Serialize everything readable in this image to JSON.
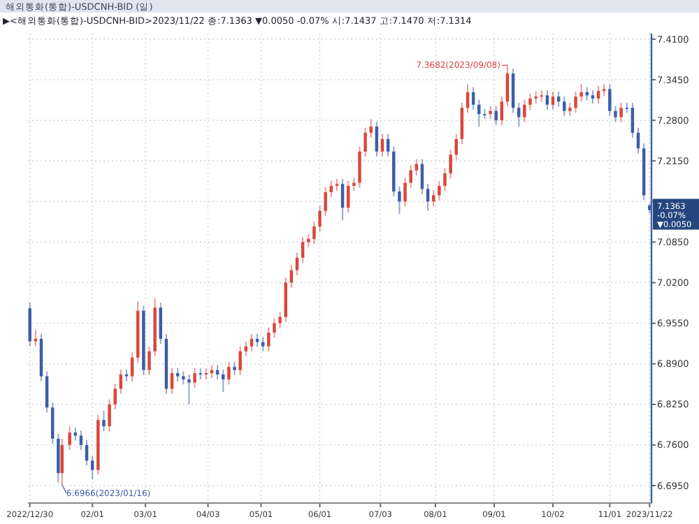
{
  "chart_data": {
    "type": "candlestick",
    "title": "해외통화(통합)-USDCNH-BID (일)",
    "subtitle": "▶<해외통화(통합)-USDCNH-BID>2023/11/22 종:7.1363 ▼0.0050 -0.07% 시:7.1437 고:7.1470 저:7.1314",
    "annotations": [
      {
        "text": "7.3682(2023/09/08)",
        "x": "2023-09-08",
        "y": 7.3682
      },
      {
        "text": "6.6966(2023/01/16)",
        "x": "2023-01-16",
        "y": 6.6966
      },
      {
        "text": "7.1363 -0.07% ▼0.0050",
        "x": "2023-11-22",
        "y": 7.1363
      }
    ],
    "x": [
      "2022-12-30",
      "2023-01-02",
      "2023-01-05",
      "2023-01-08",
      "2023-01-11",
      "2023-01-14",
      "2023-01-16",
      "2023-01-20",
      "2023-01-23",
      "2023-01-26",
      "2023-01-29",
      "2023-02-01",
      "2023-02-04",
      "2023-02-07",
      "2023-02-10",
      "2023-02-13",
      "2023-02-16",
      "2023-02-19",
      "2023-02-22",
      "2023-02-25",
      "2023-02-28",
      "2023-03-03",
      "2023-03-06",
      "2023-03-09",
      "2023-03-12",
      "2023-03-15",
      "2023-03-18",
      "2023-03-21",
      "2023-03-24",
      "2023-03-27",
      "2023-03-30",
      "2023-04-02",
      "2023-04-05",
      "2023-04-08",
      "2023-04-11",
      "2023-04-14",
      "2023-04-17",
      "2023-04-20",
      "2023-04-23",
      "2023-04-26",
      "2023-04-29",
      "2023-05-02",
      "2023-05-05",
      "2023-05-08",
      "2023-05-11",
      "2023-05-14",
      "2023-05-17",
      "2023-05-20",
      "2023-05-23",
      "2023-05-26",
      "2023-05-29",
      "2023-06-01",
      "2023-06-04",
      "2023-06-07",
      "2023-06-10",
      "2023-06-13",
      "2023-06-16",
      "2023-06-19",
      "2023-06-22",
      "2023-06-25",
      "2023-06-28",
      "2023-07-01",
      "2023-07-04",
      "2023-07-07",
      "2023-07-10",
      "2023-07-13",
      "2023-07-16",
      "2023-07-19",
      "2023-07-22",
      "2023-07-25",
      "2023-07-28",
      "2023-07-31",
      "2023-08-03",
      "2023-08-06",
      "2023-08-09",
      "2023-08-12",
      "2023-08-15",
      "2023-08-18",
      "2023-08-21",
      "2023-08-24",
      "2023-08-27",
      "2023-08-30",
      "2023-09-02",
      "2023-09-05",
      "2023-09-08",
      "2023-09-11",
      "2023-09-14",
      "2023-09-17",
      "2023-09-20",
      "2023-09-23",
      "2023-09-26",
      "2023-09-29",
      "2023-10-02",
      "2023-10-05",
      "2023-10-08",
      "2023-10-11",
      "2023-10-14",
      "2023-10-17",
      "2023-10-20",
      "2023-10-23",
      "2023-10-26",
      "2023-10-29",
      "2023-11-01",
      "2023-11-04",
      "2023-11-07",
      "2023-11-10",
      "2023-11-13",
      "2023-11-16",
      "2023-11-19",
      "2023-11-22"
    ],
    "ohlc": [
      [
        6.979,
        6.988,
        6.918,
        6.926
      ],
      [
        6.926,
        6.945,
        6.918,
        6.93
      ],
      [
        6.93,
        6.938,
        6.862,
        6.87
      ],
      [
        6.87,
        6.878,
        6.812,
        6.82
      ],
      [
        6.82,
        6.828,
        6.762,
        6.77
      ],
      [
        6.77,
        6.778,
        6.7,
        6.715
      ],
      [
        6.715,
        6.77,
        6.6966,
        6.76
      ],
      [
        6.76,
        6.79,
        6.752,
        6.78
      ],
      [
        6.78,
        6.788,
        6.767,
        6.775
      ],
      [
        6.775,
        6.783,
        6.752,
        6.76
      ],
      [
        6.76,
        6.768,
        6.727,
        6.735
      ],
      [
        6.735,
        6.743,
        6.705,
        6.72
      ],
      [
        6.72,
        6.808,
        6.712,
        6.8
      ],
      [
        6.8,
        6.815,
        6.782,
        6.79
      ],
      [
        6.79,
        6.833,
        6.782,
        6.825
      ],
      [
        6.825,
        6.858,
        6.817,
        6.85
      ],
      [
        6.85,
        6.881,
        6.842,
        6.873
      ],
      [
        6.873,
        6.881,
        6.862,
        6.87
      ],
      [
        6.87,
        6.908,
        6.862,
        6.9
      ],
      [
        6.9,
        6.99,
        6.892,
        6.975
      ],
      [
        6.975,
        6.983,
        6.872,
        6.88
      ],
      [
        6.88,
        6.918,
        6.872,
        6.91
      ],
      [
        6.91,
        6.995,
        6.902,
        6.98
      ],
      [
        6.98,
        6.988,
        6.922,
        6.93
      ],
      [
        6.93,
        6.938,
        6.842,
        6.85
      ],
      [
        6.85,
        6.883,
        6.842,
        6.875
      ],
      [
        6.875,
        6.883,
        6.862,
        6.87
      ],
      [
        6.87,
        6.878,
        6.857,
        6.865
      ],
      [
        6.865,
        6.873,
        6.825,
        6.86
      ],
      [
        6.86,
        6.883,
        6.852,
        6.875
      ],
      [
        6.875,
        6.883,
        6.865,
        6.873
      ],
      [
        6.873,
        6.883,
        6.865,
        6.875
      ],
      [
        6.875,
        6.888,
        6.867,
        6.88
      ],
      [
        6.88,
        6.888,
        6.865,
        6.873
      ],
      [
        6.873,
        6.881,
        6.845,
        6.865
      ],
      [
        6.865,
        6.893,
        6.857,
        6.885
      ],
      [
        6.885,
        6.893,
        6.872,
        6.88
      ],
      [
        6.88,
        6.918,
        6.872,
        6.91
      ],
      [
        6.91,
        6.926,
        6.902,
        6.918
      ],
      [
        6.918,
        6.938,
        6.91,
        6.93
      ],
      [
        6.93,
        6.938,
        6.917,
        6.925
      ],
      [
        6.925,
        6.933,
        6.91,
        6.918
      ],
      [
        6.918,
        6.948,
        6.91,
        6.94
      ],
      [
        6.94,
        6.963,
        6.932,
        6.955
      ],
      [
        6.955,
        6.973,
        6.947,
        6.965
      ],
      [
        6.965,
        7.028,
        6.957,
        7.02
      ],
      [
        7.02,
        7.048,
        7.012,
        7.04
      ],
      [
        7.04,
        7.068,
        7.032,
        7.06
      ],
      [
        7.06,
        7.093,
        7.052,
        7.085
      ],
      [
        7.085,
        7.098,
        7.077,
        7.09
      ],
      [
        7.09,
        7.118,
        7.082,
        7.11
      ],
      [
        7.11,
        7.143,
        7.102,
        7.135
      ],
      [
        7.135,
        7.173,
        7.127,
        7.165
      ],
      [
        7.165,
        7.183,
        7.157,
        7.175
      ],
      [
        7.175,
        7.186,
        7.167,
        7.178
      ],
      [
        7.178,
        7.186,
        7.12,
        7.14
      ],
      [
        7.14,
        7.183,
        7.132,
        7.175
      ],
      [
        7.175,
        7.188,
        7.167,
        7.18
      ],
      [
        7.18,
        7.238,
        7.172,
        7.23
      ],
      [
        7.23,
        7.268,
        7.222,
        7.26
      ],
      [
        7.26,
        7.282,
        7.252,
        7.27
      ],
      [
        7.27,
        7.278,
        7.222,
        7.23
      ],
      [
        7.23,
        7.258,
        7.222,
        7.25
      ],
      [
        7.25,
        7.258,
        7.222,
        7.23
      ],
      [
        7.23,
        7.238,
        7.158,
        7.166
      ],
      [
        7.166,
        7.174,
        7.13,
        7.15
      ],
      [
        7.15,
        7.188,
        7.142,
        7.18
      ],
      [
        7.18,
        7.208,
        7.172,
        7.2
      ],
      [
        7.2,
        7.218,
        7.192,
        7.21
      ],
      [
        7.21,
        7.218,
        7.162,
        7.17
      ],
      [
        7.17,
        7.178,
        7.135,
        7.15
      ],
      [
        7.15,
        7.168,
        7.142,
        7.16
      ],
      [
        7.16,
        7.183,
        7.152,
        7.175
      ],
      [
        7.175,
        7.203,
        7.167,
        7.195
      ],
      [
        7.195,
        7.233,
        7.187,
        7.225
      ],
      [
        7.225,
        7.258,
        7.217,
        7.25
      ],
      [
        7.25,
        7.308,
        7.242,
        7.3
      ],
      [
        7.3,
        7.338,
        7.292,
        7.325
      ],
      [
        7.325,
        7.333,
        7.297,
        7.305
      ],
      [
        7.305,
        7.313,
        7.27,
        7.29
      ],
      [
        7.29,
        7.298,
        7.282,
        7.29
      ],
      [
        7.29,
        7.303,
        7.282,
        7.295
      ],
      [
        7.295,
        7.303,
        7.272,
        7.28
      ],
      [
        7.28,
        7.318,
        7.272,
        7.31
      ],
      [
        7.31,
        7.3682,
        7.302,
        7.355
      ],
      [
        7.355,
        7.363,
        7.292,
        7.3
      ],
      [
        7.3,
        7.308,
        7.27,
        7.285
      ],
      [
        7.285,
        7.313,
        7.277,
        7.305
      ],
      [
        7.305,
        7.323,
        7.297,
        7.315
      ],
      [
        7.315,
        7.326,
        7.307,
        7.318
      ],
      [
        7.318,
        7.328,
        7.31,
        7.32
      ],
      [
        7.32,
        7.328,
        7.297,
        7.305
      ],
      [
        7.305,
        7.326,
        7.297,
        7.318
      ],
      [
        7.318,
        7.326,
        7.302,
        7.31
      ],
      [
        7.31,
        7.318,
        7.287,
        7.295
      ],
      [
        7.295,
        7.308,
        7.287,
        7.3
      ],
      [
        7.3,
        7.326,
        7.292,
        7.318
      ],
      [
        7.318,
        7.338,
        7.31,
        7.325
      ],
      [
        7.325,
        7.333,
        7.312,
        7.32
      ],
      [
        7.32,
        7.328,
        7.307,
        7.315
      ],
      [
        7.315,
        7.335,
        7.307,
        7.327
      ],
      [
        7.327,
        7.338,
        7.319,
        7.33
      ],
      [
        7.33,
        7.338,
        7.287,
        7.295
      ],
      [
        7.295,
        7.303,
        7.277,
        7.285
      ],
      [
        7.285,
        7.308,
        7.277,
        7.3
      ],
      [
        7.3,
        7.308,
        7.292,
        7.3
      ],
      [
        7.3,
        7.308,
        7.252,
        7.26
      ],
      [
        7.26,
        7.268,
        7.227,
        7.235
      ],
      [
        7.235,
        7.243,
        7.152,
        7.16
      ],
      [
        7.1437,
        7.147,
        7.1314,
        7.1363
      ]
    ],
    "colors": [
      "#3b5ea8",
      "#d9473b",
      "#3b5ea8",
      "#3b5ea8",
      "#3b5ea8",
      "#3b5ea8",
      "#d9473b",
      "#d9473b",
      "#3b5ea8",
      "#3b5ea8",
      "#3b5ea8",
      "#3b5ea8",
      "#d9473b",
      "#3b5ea8",
      "#d9473b",
      "#d9473b",
      "#d9473b",
      "#3b5ea8",
      "#d9473b",
      "#d9473b",
      "#3b5ea8",
      "#d9473b",
      "#d9473b",
      "#3b5ea8",
      "#3b5ea8",
      "#d9473b",
      "#3b5ea8",
      "#3b5ea8",
      "#3b5ea8",
      "#d9473b",
      "#3b5ea8",
      "#d9473b",
      "#d9473b",
      "#3b5ea8",
      "#3b5ea8",
      "#d9473b",
      "#3b5ea8",
      "#d9473b",
      "#d9473b",
      "#d9473b",
      "#3b5ea8",
      "#3b5ea8",
      "#d9473b",
      "#d9473b",
      "#d9473b",
      "#d9473b",
      "#d9473b",
      "#d9473b",
      "#d9473b",
      "#d9473b",
      "#d9473b",
      "#d9473b",
      "#d9473b",
      "#d9473b",
      "#d9473b",
      "#3b5ea8",
      "#d9473b",
      "#d9473b",
      "#d9473b",
      "#d9473b",
      "#d9473b",
      "#3b5ea8",
      "#d9473b",
      "#3b5ea8",
      "#3b5ea8",
      "#3b5ea8",
      "#d9473b",
      "#d9473b",
      "#d9473b",
      "#3b5ea8",
      "#3b5ea8",
      "#d9473b",
      "#d9473b",
      "#d9473b",
      "#d9473b",
      "#d9473b",
      "#d9473b",
      "#d9473b",
      "#3b5ea8",
      "#3b5ea8",
      "#3b5ea8",
      "#d9473b",
      "#3b5ea8",
      "#d9473b",
      "#d9473b",
      "#3b5ea8",
      "#3b5ea8",
      "#d9473b",
      "#d9473b",
      "#d9473b",
      "#d9473b",
      "#3b5ea8",
      "#d9473b",
      "#3b5ea8",
      "#3b5ea8",
      "#d9473b",
      "#d9473b",
      "#d9473b",
      "#3b5ea8",
      "#3b5ea8",
      "#d9473b",
      "#d9473b",
      "#3b5ea8",
      "#3b5ea8",
      "#d9473b",
      "#3b5ea8",
      "#3b5ea8",
      "#3b5ea8",
      "#3b5ea8",
      "#3b5ea8"
    ],
    "xlim": [
      "2022-12-29",
      "2023-11-23"
    ],
    "xticks": [
      {
        "value": "2022-12-30",
        "label": "2022/12/30"
      },
      {
        "value": "2023-02-01",
        "label": "02/01"
      },
      {
        "value": "2023-03-01",
        "label": "03/01"
      },
      {
        "value": "2023-04-03",
        "label": "04/03"
      },
      {
        "value": "2023-05-01",
        "label": "05/01"
      },
      {
        "value": "2023-06-01",
        "label": "06/01"
      },
      {
        "value": "2023-07-03",
        "label": "07/03"
      },
      {
        "value": "2023-08-01",
        "label": "08/01"
      },
      {
        "value": "2023-09-01",
        "label": "09/01"
      },
      {
        "value": "2023-10-02",
        "label": "10/02"
      },
      {
        "value": "2023-11-01",
        "label": "11/01"
      },
      {
        "value": "2023-11-22",
        "label": "2023/11/22"
      }
    ],
    "ylim": [
      6.667,
      7.419
    ],
    "yticks": [
      {
        "value": 6.695,
        "label": "6.6950"
      },
      {
        "value": 6.76,
        "label": "6.7600"
      },
      {
        "value": 6.825,
        "label": "6.8250"
      },
      {
        "value": 6.89,
        "label": "6.8900"
      },
      {
        "value": 6.955,
        "label": "6.9550"
      },
      {
        "value": 7.02,
        "label": "7.0200"
      },
      {
        "value": 7.085,
        "label": "7.0850"
      },
      {
        "value": 7.15,
        "label": null
      },
      {
        "value": 7.215,
        "label": "7.2150"
      },
      {
        "value": 7.28,
        "label": "7.2800"
      },
      {
        "value": 7.345,
        "label": "7.3450"
      },
      {
        "value": 7.41,
        "label": "7.4100"
      }
    ],
    "grid": true
  }
}
